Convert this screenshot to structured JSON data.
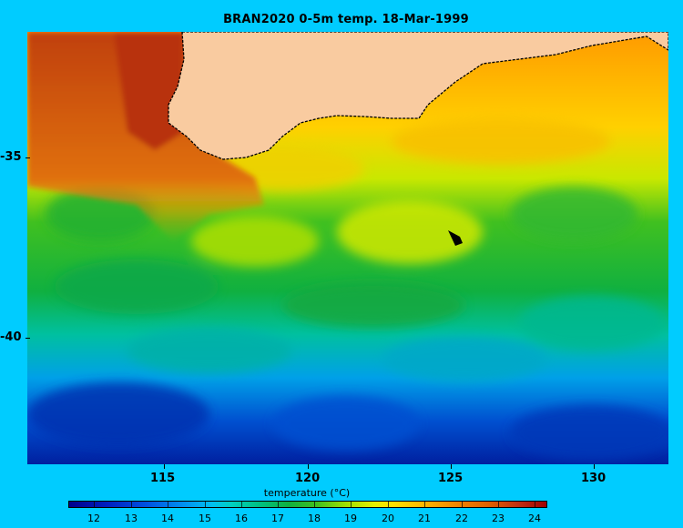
{
  "title": "BRAN2020 0-5m temp. 18-Mar-1999",
  "map": {
    "x_ticks": [
      "115",
      "120",
      "125",
      "130"
    ],
    "y_ticks": [
      "-35",
      "-40"
    ],
    "land_color": "#f9cba0",
    "ocean_colors": {
      "warm": "#d05a10",
      "mid": "#e8e800",
      "cool": "#10b840",
      "cold": "#003ab0"
    }
  },
  "colorbar": {
    "label": "temperature (°C)",
    "ticks": [
      "12",
      "13",
      "14",
      "15",
      "16",
      "17",
      "18",
      "19",
      "20",
      "21",
      "22",
      "23",
      "24"
    ]
  }
}
